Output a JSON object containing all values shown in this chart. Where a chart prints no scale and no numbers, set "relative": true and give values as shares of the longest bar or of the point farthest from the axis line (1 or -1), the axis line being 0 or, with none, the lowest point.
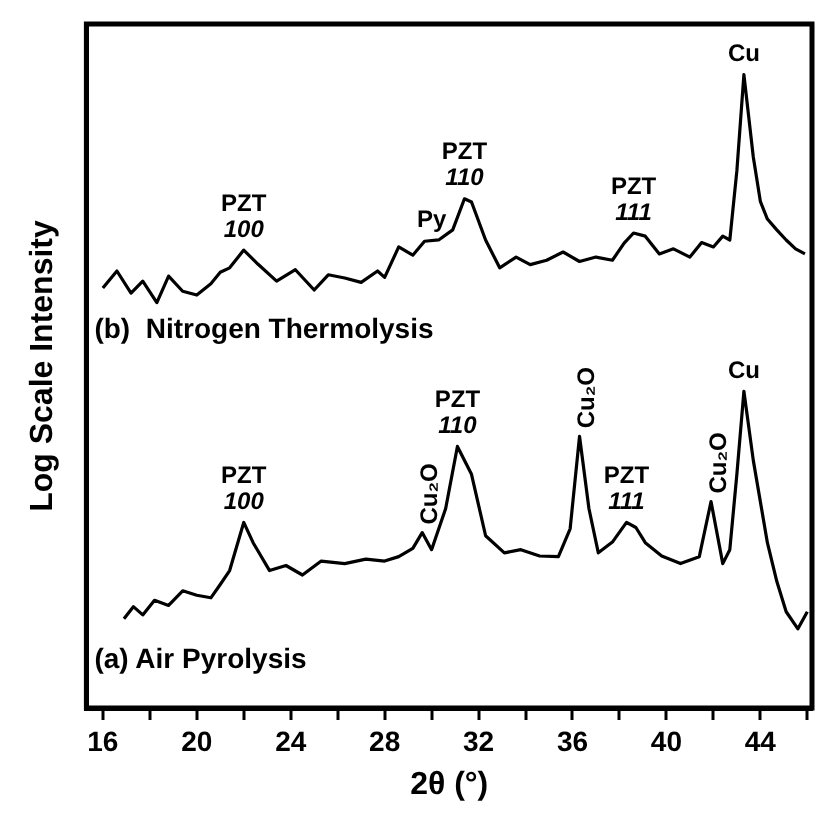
{
  "chart_data": {
    "type": "line",
    "xlabel": "2θ (°)",
    "ylabel": "Log Scale Intensity",
    "relative": true,
    "legend": false,
    "grid": false,
    "marker": "none",
    "line_style": "solid",
    "xlim": [
      15.3,
      46.2
    ],
    "xticks": [
      16,
      {
        "value": 18,
        "label": null
      },
      20,
      {
        "value": 22,
        "label": null
      },
      24,
      {
        "value": 26,
        "label": null
      },
      28,
      {
        "value": 30,
        "label": null
      },
      32,
      {
        "value": 34,
        "label": null
      },
      36,
      {
        "value": 38,
        "label": null
      },
      40,
      {
        "value": 42,
        "label": null
      },
      44,
      {
        "value": 46,
        "label": null
      }
    ],
    "series": [
      {
        "name": "(b)  Nitrogen Thermolysis",
        "color": "#000000",
        "x": [
          16.0,
          16.6,
          17.2,
          17.7,
          18.3,
          18.8,
          19.4,
          20.0,
          20.6,
          21.0,
          21.4,
          22.0,
          22.6,
          23.4,
          24.2,
          25.0,
          25.6,
          26.3,
          27.0,
          27.7,
          28.0,
          28.6,
          29.2,
          29.7,
          30.3,
          30.9,
          31.4,
          31.7,
          32.3,
          32.9,
          33.6,
          34.2,
          34.9,
          35.6,
          36.3,
          37.0,
          37.7,
          38.2,
          38.6,
          39.1,
          39.7,
          40.3,
          41.0,
          41.5,
          42.0,
          42.4,
          42.7,
          43.0,
          43.3,
          43.7,
          44.0,
          44.3,
          44.7,
          45.1,
          45.5,
          45.9
        ],
        "values": [
          0.663,
          0.69,
          0.655,
          0.674,
          0.64,
          0.682,
          0.658,
          0.652,
          0.67,
          0.688,
          0.695,
          0.723,
          0.701,
          0.674,
          0.692,
          0.66,
          0.684,
          0.679,
          0.672,
          0.69,
          0.68,
          0.728,
          0.715,
          0.737,
          0.739,
          0.755,
          0.804,
          0.799,
          0.739,
          0.695,
          0.712,
          0.7,
          0.707,
          0.72,
          0.705,
          0.712,
          0.707,
          0.734,
          0.75,
          0.745,
          0.717,
          0.725,
          0.712,
          0.735,
          0.728,
          0.745,
          0.739,
          0.848,
          1.0,
          0.87,
          0.8,
          0.772,
          0.755,
          0.739,
          0.725,
          0.717
        ]
      },
      {
        "name": "(a) Air Pyrolysis",
        "color": "#000000",
        "x": [
          16.9,
          17.3,
          17.7,
          18.2,
          18.8,
          19.4,
          20.0,
          20.6,
          21.0,
          21.4,
          22.0,
          22.4,
          23.1,
          23.8,
          24.5,
          25.3,
          26.3,
          27.2,
          28.0,
          28.6,
          29.2,
          29.6,
          30.0,
          30.6,
          31.1,
          31.7,
          32.3,
          33.1,
          33.8,
          34.6,
          35.4,
          35.9,
          36.3,
          36.7,
          37.1,
          37.7,
          38.3,
          38.7,
          39.1,
          39.8,
          40.6,
          41.4,
          41.9,
          42.4,
          42.7,
          43.0,
          43.3,
          43.7,
          44.3,
          44.7,
          45.1,
          45.6,
          46.0
        ],
        "values": [
          0.141,
          0.16,
          0.147,
          0.17,
          0.162,
          0.185,
          0.178,
          0.174,
          0.195,
          0.217,
          0.293,
          0.261,
          0.217,
          0.225,
          0.21,
          0.232,
          0.228,
          0.235,
          0.232,
          0.239,
          0.252,
          0.277,
          0.25,
          0.315,
          0.413,
          0.369,
          0.272,
          0.245,
          0.25,
          0.24,
          0.239,
          0.283,
          0.429,
          0.315,
          0.245,
          0.262,
          0.293,
          0.285,
          0.261,
          0.24,
          0.228,
          0.239,
          0.326,
          0.228,
          0.25,
          0.369,
          0.5,
          0.391,
          0.261,
          0.2,
          0.152,
          0.125,
          0.152
        ]
      }
    ],
    "annotations": [
      {
        "text": "PZT\n100",
        "x": 22.0,
        "y": 0.723
      },
      {
        "text": "Py",
        "x": 30.0,
        "y": 0.739
      },
      {
        "text": "PZT\n110",
        "x": 31.4,
        "y": 0.804
      },
      {
        "text": "PZT\n111",
        "x": 38.6,
        "y": 0.75
      },
      {
        "text": "Cu",
        "x": 43.3,
        "y": 1.0
      },
      {
        "text": "PZT\n100",
        "x": 22.0,
        "y": 0.293
      },
      {
        "text": "Cu₂O",
        "x": 29.6,
        "y": 0.277
      },
      {
        "text": "PZT\n110",
        "x": 31.1,
        "y": 0.413
      },
      {
        "text": "Cu₂O",
        "x": 36.3,
        "y": 0.429
      },
      {
        "text": "PZT\n111",
        "x": 38.3,
        "y": 0.293
      },
      {
        "text": "Cu₂O",
        "x": 41.9,
        "y": 0.326
      },
      {
        "text": "Cu",
        "x": 43.3,
        "y": 0.5
      }
    ]
  }
}
